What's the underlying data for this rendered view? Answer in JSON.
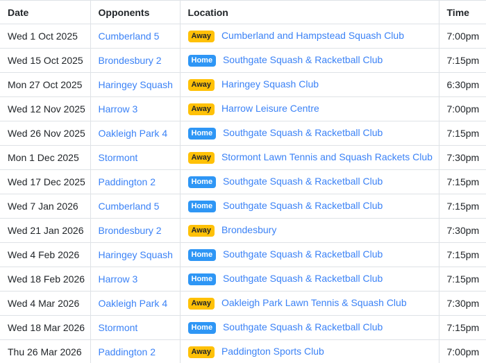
{
  "colors": {
    "link": "#3b82f6",
    "border": "#dee2e6",
    "header_text": "#212529",
    "body_text": "#212529",
    "away_badge_bg": "#ffc107",
    "away_badge_text": "#212529",
    "home_badge_bg": "#2e96f5",
    "home_badge_text": "#ffffff"
  },
  "table": {
    "columns": [
      {
        "label": "Date"
      },
      {
        "label": "Opponents"
      },
      {
        "label": "Location"
      },
      {
        "label": "Time"
      }
    ],
    "rows": [
      {
        "date": "Wed 1 Oct 2025",
        "opponent": "Cumberland 5",
        "venue_type": "Away",
        "venue": "Cumberland and Hampstead Squash Club",
        "time": "7:00pm"
      },
      {
        "date": "Wed 15 Oct 2025",
        "opponent": "Brondesbury 2",
        "venue_type": "Home",
        "venue": "Southgate Squash & Racketball Club",
        "time": "7:15pm"
      },
      {
        "date": "Mon 27 Oct 2025",
        "opponent": "Haringey Squash",
        "venue_type": "Away",
        "venue": "Haringey Squash Club",
        "time": "6:30pm"
      },
      {
        "date": "Wed 12 Nov 2025",
        "opponent": "Harrow 3",
        "venue_type": "Away",
        "venue": "Harrow Leisure Centre",
        "time": "7:00pm"
      },
      {
        "date": "Wed 26 Nov 2025",
        "opponent": "Oakleigh Park 4",
        "venue_type": "Home",
        "venue": "Southgate Squash & Racketball Club",
        "time": "7:15pm"
      },
      {
        "date": "Mon 1 Dec 2025",
        "opponent": "Stormont",
        "venue_type": "Away",
        "venue": "Stormont Lawn Tennis and Squash Rackets Club",
        "time": "7:30pm"
      },
      {
        "date": "Wed 17 Dec 2025",
        "opponent": "Paddington 2",
        "venue_type": "Home",
        "venue": "Southgate Squash & Racketball Club",
        "time": "7:15pm"
      },
      {
        "date": "Wed 7 Jan 2026",
        "opponent": "Cumberland 5",
        "venue_type": "Home",
        "venue": "Southgate Squash & Racketball Club",
        "time": "7:15pm"
      },
      {
        "date": "Wed 21 Jan 2026",
        "opponent": "Brondesbury 2",
        "venue_type": "Away",
        "venue": "Brondesbury",
        "time": "7:30pm"
      },
      {
        "date": "Wed 4 Feb 2026",
        "opponent": "Haringey Squash",
        "venue_type": "Home",
        "venue": "Southgate Squash & Racketball Club",
        "time": "7:15pm"
      },
      {
        "date": "Wed 18 Feb 2026",
        "opponent": "Harrow 3",
        "venue_type": "Home",
        "venue": "Southgate Squash & Racketball Club",
        "time": "7:15pm"
      },
      {
        "date": "Wed 4 Mar 2026",
        "opponent": "Oakleigh Park 4",
        "venue_type": "Away",
        "venue": "Oakleigh Park Lawn Tennis & Squash Club",
        "time": "7:30pm"
      },
      {
        "date": "Wed 18 Mar 2026",
        "opponent": "Stormont",
        "venue_type": "Home",
        "venue": "Southgate Squash & Racketball Club",
        "time": "7:15pm"
      },
      {
        "date": "Thu 26 Mar 2026",
        "opponent": "Paddington 2",
        "venue_type": "Away",
        "venue": "Paddington Sports Club",
        "time": "7:00pm"
      }
    ]
  }
}
